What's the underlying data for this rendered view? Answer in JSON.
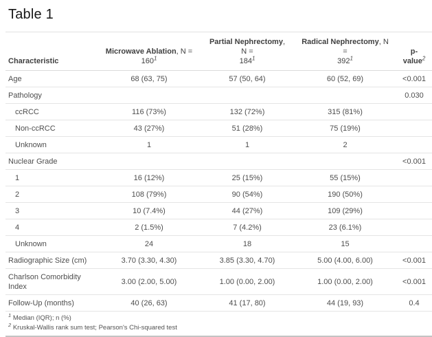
{
  "page": {
    "title": "Table 1"
  },
  "table": {
    "columns": [
      {
        "name": "Characteristic",
        "n_eq": "",
        "count": "",
        "sup": ""
      },
      {
        "name": "Microwave Ablation",
        "n_eq": ", N =",
        "count": "160",
        "sup": "1"
      },
      {
        "name": "Partial Nephrectomy",
        "n_eq": ", N =",
        "count": "184",
        "sup": "1"
      },
      {
        "name": "Radical Nephrectomy",
        "n_eq": ", N =",
        "count": "392",
        "sup": "1"
      },
      {
        "name": "p-value",
        "n_eq": "",
        "count": "",
        "sup": "2"
      }
    ],
    "rows": [
      {
        "label": "Age",
        "indent": false,
        "values": [
          "68 (63, 75)",
          "57 (50, 64)",
          "60 (52, 69)"
        ],
        "p": "<0.001"
      },
      {
        "label": "Pathology",
        "indent": false,
        "values": [
          "",
          "",
          ""
        ],
        "p": "0.030"
      },
      {
        "label": "ccRCC",
        "indent": true,
        "values": [
          "116 (73%)",
          "132 (72%)",
          "315 (81%)"
        ],
        "p": ""
      },
      {
        "label": "Non-ccRCC",
        "indent": true,
        "values": [
          "43 (27%)",
          "51 (28%)",
          "75 (19%)"
        ],
        "p": ""
      },
      {
        "label": "Unknown",
        "indent": true,
        "values": [
          "1",
          "1",
          "2"
        ],
        "p": ""
      },
      {
        "label": "Nuclear Grade",
        "indent": false,
        "values": [
          "",
          "",
          ""
        ],
        "p": "<0.001"
      },
      {
        "label": "1",
        "indent": true,
        "values": [
          "16 (12%)",
          "25 (15%)",
          "55 (15%)"
        ],
        "p": ""
      },
      {
        "label": "2",
        "indent": true,
        "values": [
          "108 (79%)",
          "90 (54%)",
          "190 (50%)"
        ],
        "p": ""
      },
      {
        "label": "3",
        "indent": true,
        "values": [
          "10 (7.4%)",
          "44 (27%)",
          "109 (29%)"
        ],
        "p": ""
      },
      {
        "label": "4",
        "indent": true,
        "values": [
          "2 (1.5%)",
          "7 (4.2%)",
          "23 (6.1%)"
        ],
        "p": ""
      },
      {
        "label": "Unknown",
        "indent": true,
        "values": [
          "24",
          "18",
          "15"
        ],
        "p": ""
      },
      {
        "label": "Radiographic Size (cm)",
        "indent": false,
        "values": [
          "3.70 (3.30, 4.30)",
          "3.85 (3.30, 4.70)",
          "5.00 (4.00, 6.00)"
        ],
        "p": "<0.001"
      },
      {
        "label": "Charlson Comorbidity Index",
        "indent": false,
        "values": [
          "3.00 (2.00, 5.00)",
          "1.00 (0.00, 2.00)",
          "1.00 (0.00, 2.00)"
        ],
        "p": "<0.001"
      },
      {
        "label": "Follow-Up (months)",
        "indent": false,
        "values": [
          "40 (26, 63)",
          "41 (17, 80)",
          "44 (19, 93)"
        ],
        "p": "0.4"
      }
    ]
  },
  "footnotes": [
    {
      "sup": "1",
      "text": "Median (IQR); n (%)"
    },
    {
      "sup": "2",
      "text": "Kruskal-Wallis rank sum test; Pearson's Chi-squared test"
    }
  ],
  "colors": {
    "body_text": "#4d4d4d",
    "header_text": "#404040",
    "title_text": "#161616",
    "row_border": "#e4e4e4",
    "bottom_border": "#c3c3c3",
    "background": "#ffffff"
  }
}
